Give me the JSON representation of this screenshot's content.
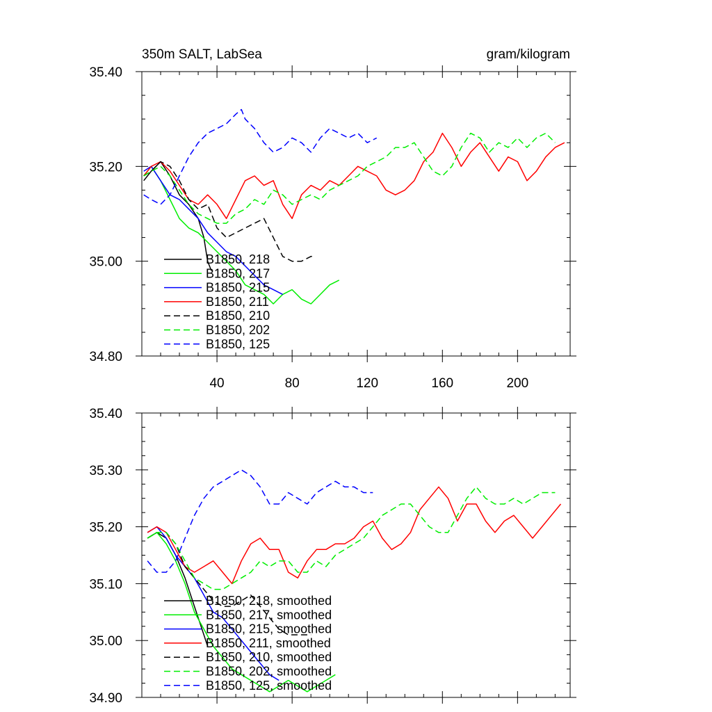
{
  "figure": {
    "title_left": "350m SALT, LabSea",
    "title_right": "gram/kilogram"
  },
  "chart_data": [
    {
      "type": "line",
      "panel": "top",
      "xlim": [
        0,
        228
      ],
      "ylim": [
        34.8,
        35.4
      ],
      "xticks": [
        40,
        80,
        120,
        160,
        200
      ],
      "yticks": [
        34.8,
        35.0,
        35.2,
        35.4
      ],
      "xtick_labels": [
        "40",
        "80",
        "120",
        "160",
        "200"
      ],
      "ytick_labels": [
        "34.80",
        "35.00",
        "35.20",
        "35.40"
      ],
      "legend_position": "bottom-left",
      "series": [
        {
          "name": "B1850, 218",
          "color": "#000000",
          "dash": "solid",
          "x": [
            1,
            5,
            10,
            15,
            20,
            25,
            30,
            33,
            35,
            37
          ],
          "y": [
            35.17,
            35.19,
            35.21,
            35.18,
            35.14,
            35.12,
            35.09,
            35.05,
            35.0,
            34.98
          ]
        },
        {
          "name": "B1850, 217",
          "color": "#00ee00",
          "dash": "solid",
          "x": [
            1,
            5,
            10,
            15,
            20,
            25,
            30,
            35,
            40,
            45,
            50,
            55,
            60,
            65,
            70,
            75,
            80,
            85,
            90,
            95,
            100,
            105
          ],
          "y": [
            35.18,
            35.2,
            35.17,
            35.13,
            35.09,
            35.07,
            35.06,
            35.04,
            35.02,
            35.0,
            34.98,
            34.95,
            34.94,
            34.93,
            34.91,
            34.93,
            34.94,
            34.92,
            34.91,
            34.93,
            34.95,
            34.96
          ]
        },
        {
          "name": "B1850, 215",
          "color": "#0000ff",
          "dash": "solid",
          "x": [
            1,
            5,
            10,
            15,
            20,
            25,
            30,
            35,
            40,
            45,
            50,
            55,
            60,
            65,
            70,
            75
          ],
          "y": [
            35.19,
            35.2,
            35.17,
            35.14,
            35.13,
            35.11,
            35.09,
            35.06,
            35.04,
            35.02,
            35.01,
            34.99,
            34.97,
            34.95,
            34.94,
            34.93
          ]
        },
        {
          "name": "B1850, 211",
          "color": "#ff0000",
          "dash": "solid",
          "x": [
            1,
            5,
            10,
            15,
            20,
            25,
            30,
            35,
            40,
            45,
            50,
            55,
            60,
            65,
            70,
            75,
            80,
            85,
            90,
            95,
            100,
            105,
            110,
            115,
            120,
            125,
            130,
            135,
            140,
            145,
            150,
            155,
            160,
            165,
            170,
            175,
            180,
            185,
            190,
            195,
            200,
            205,
            210,
            215,
            220,
            225
          ],
          "y": [
            35.18,
            35.2,
            35.21,
            35.19,
            35.16,
            35.13,
            35.12,
            35.14,
            35.12,
            35.09,
            35.13,
            35.17,
            35.18,
            35.16,
            35.17,
            35.12,
            35.09,
            35.14,
            35.16,
            35.15,
            35.17,
            35.16,
            35.18,
            35.2,
            35.19,
            35.18,
            35.15,
            35.14,
            35.15,
            35.17,
            35.21,
            35.23,
            35.27,
            35.24,
            35.2,
            35.23,
            35.25,
            35.22,
            35.19,
            35.22,
            35.21,
            35.17,
            35.19,
            35.22,
            35.24,
            35.25
          ]
        },
        {
          "name": "B1850, 210",
          "color": "#000000",
          "dash": "dashed",
          "x": [
            1,
            5,
            10,
            15,
            20,
            25,
            30,
            35,
            40,
            45,
            50,
            55,
            60,
            65,
            70,
            75,
            80,
            85,
            90,
            92
          ],
          "y": [
            35.18,
            35.19,
            35.21,
            35.2,
            35.17,
            35.13,
            35.11,
            35.12,
            35.07,
            35.05,
            35.06,
            35.07,
            35.08,
            35.09,
            35.05,
            35.01,
            35.0,
            35.0,
            35.01,
            35.01
          ]
        },
        {
          "name": "B1850, 202",
          "color": "#00ee00",
          "dash": "dashed",
          "x": [
            1,
            5,
            10,
            15,
            20,
            25,
            30,
            35,
            40,
            45,
            50,
            55,
            60,
            65,
            70,
            75,
            80,
            85,
            90,
            95,
            100,
            105,
            110,
            115,
            120,
            125,
            130,
            135,
            140,
            145,
            150,
            155,
            160,
            165,
            170,
            175,
            180,
            185,
            190,
            195,
            200,
            205,
            210,
            215,
            220
          ],
          "y": [
            35.18,
            35.19,
            35.2,
            35.18,
            35.15,
            35.12,
            35.1,
            35.09,
            35.08,
            35.08,
            35.1,
            35.11,
            35.13,
            35.12,
            35.15,
            35.14,
            35.12,
            35.13,
            35.14,
            35.13,
            35.15,
            35.16,
            35.17,
            35.18,
            35.2,
            35.21,
            35.22,
            35.24,
            35.24,
            35.25,
            35.22,
            35.19,
            35.18,
            35.2,
            35.24,
            35.27,
            35.26,
            35.23,
            35.25,
            35.24,
            35.26,
            35.24,
            35.26,
            35.27,
            35.25
          ]
        },
        {
          "name": "B1850, 125",
          "color": "#0000ff",
          "dash": "dashed",
          "x": [
            1,
            5,
            10,
            15,
            20,
            25,
            30,
            35,
            40,
            45,
            50,
            53,
            55,
            60,
            65,
            70,
            75,
            80,
            85,
            90,
            95,
            100,
            105,
            110,
            115,
            120,
            125
          ],
          "y": [
            35.14,
            35.13,
            35.12,
            35.14,
            35.18,
            35.22,
            35.25,
            35.27,
            35.28,
            35.29,
            35.31,
            35.32,
            35.3,
            35.28,
            35.25,
            35.23,
            35.24,
            35.26,
            35.25,
            35.23,
            35.26,
            35.28,
            35.27,
            35.26,
            35.27,
            35.25,
            35.26
          ]
        }
      ]
    },
    {
      "type": "line",
      "panel": "bottom",
      "xlim": [
        0,
        228
      ],
      "ylim": [
        34.9,
        35.4
      ],
      "yticks": [
        34.9,
        35.0,
        35.1,
        35.2,
        35.3,
        35.4
      ],
      "ytick_labels": [
        "34.90",
        "35.00",
        "35.10",
        "35.20",
        "35.30",
        "35.40"
      ],
      "legend_position": "bottom-left",
      "series": [
        {
          "name": "B1850, 218, smoothed",
          "color": "#000000",
          "dash": "solid",
          "x": [
            3,
            8,
            13,
            18,
            23,
            28,
            31,
            33,
            35
          ],
          "y": [
            35.18,
            35.19,
            35.18,
            35.15,
            35.11,
            35.06,
            35.03,
            35.01,
            34.99
          ]
        },
        {
          "name": "B1850, 217, smoothed",
          "color": "#00ee00",
          "dash": "solid",
          "x": [
            3,
            8,
            13,
            18,
            23,
            28,
            33,
            38,
            43,
            48,
            53,
            58,
            63,
            68,
            73,
            78,
            83,
            88,
            93,
            98,
            103
          ],
          "y": [
            35.18,
            35.19,
            35.17,
            35.14,
            35.1,
            35.05,
            35.02,
            34.99,
            34.97,
            34.95,
            34.94,
            34.93,
            34.92,
            34.91,
            34.92,
            34.93,
            34.92,
            34.91,
            34.92,
            34.93,
            34.94
          ]
        },
        {
          "name": "B1850, 215, smoothed",
          "color": "#0000ff",
          "dash": "solid",
          "x": [
            3,
            8,
            13,
            18,
            23,
            28,
            33,
            38,
            43,
            48,
            53,
            58,
            63,
            68,
            73
          ],
          "y": [
            35.19,
            35.2,
            35.18,
            35.15,
            35.13,
            35.11,
            35.08,
            35.05,
            35.04,
            35.02,
            35.0,
            34.98,
            34.96,
            34.94,
            34.93
          ]
        },
        {
          "name": "B1850, 211, smoothed",
          "color": "#ff0000",
          "dash": "solid",
          "x": [
            3,
            8,
            13,
            18,
            23,
            28,
            33,
            38,
            43,
            48,
            53,
            58,
            63,
            68,
            73,
            78,
            83,
            88,
            93,
            98,
            103,
            108,
            113,
            118,
            123,
            128,
            133,
            138,
            143,
            148,
            153,
            158,
            163,
            168,
            173,
            178,
            183,
            188,
            193,
            198,
            203,
            208,
            213,
            218,
            223
          ],
          "y": [
            35.19,
            35.2,
            35.19,
            35.16,
            35.13,
            35.12,
            35.13,
            35.14,
            35.12,
            35.1,
            35.14,
            35.17,
            35.18,
            35.16,
            35.16,
            35.12,
            35.11,
            35.14,
            35.16,
            35.16,
            35.17,
            35.17,
            35.18,
            35.2,
            35.21,
            35.18,
            35.16,
            35.17,
            35.19,
            35.23,
            35.25,
            35.27,
            35.25,
            35.21,
            35.24,
            35.24,
            35.21,
            35.19,
            35.21,
            35.22,
            35.2,
            35.18,
            35.2,
            35.22,
            35.24
          ]
        },
        {
          "name": "B1850, 210, smoothed",
          "color": "#000000",
          "dash": "dashed",
          "x": [
            3,
            8,
            13,
            18,
            23,
            28,
            33,
            38,
            43,
            48,
            53,
            58,
            63,
            68,
            73,
            78,
            83,
            88,
            90
          ],
          "y": [
            35.18,
            35.19,
            35.19,
            35.17,
            35.13,
            35.11,
            35.09,
            35.07,
            35.06,
            35.06,
            35.07,
            35.08,
            35.06,
            35.04,
            35.02,
            35.01,
            35.01,
            35.01,
            35.01
          ]
        },
        {
          "name": "B1850, 202, smoothed",
          "color": "#00ee00",
          "dash": "dashed",
          "x": [
            3,
            8,
            13,
            18,
            23,
            28,
            33,
            38,
            43,
            48,
            53,
            58,
            63,
            68,
            73,
            78,
            83,
            88,
            93,
            98,
            103,
            108,
            113,
            118,
            123,
            128,
            133,
            138,
            143,
            148,
            153,
            158,
            163,
            168,
            173,
            178,
            183,
            188,
            193,
            198,
            203,
            208,
            213,
            218,
            220
          ],
          "y": [
            35.18,
            35.19,
            35.19,
            35.17,
            35.14,
            35.11,
            35.1,
            35.09,
            35.09,
            35.1,
            35.11,
            35.12,
            35.14,
            35.13,
            35.14,
            35.14,
            35.12,
            35.12,
            35.14,
            35.13,
            35.15,
            35.16,
            35.17,
            35.18,
            35.2,
            35.22,
            35.23,
            35.24,
            35.24,
            35.22,
            35.2,
            35.19,
            35.19,
            35.22,
            35.25,
            35.27,
            35.25,
            35.24,
            35.24,
            35.25,
            35.24,
            35.25,
            35.26,
            35.26,
            35.26
          ]
        },
        {
          "name": "B1850, 125, smoothed",
          "color": "#0000ff",
          "dash": "dashed",
          "x": [
            3,
            8,
            13,
            18,
            23,
            28,
            33,
            38,
            43,
            48,
            53,
            58,
            63,
            68,
            73,
            78,
            83,
            88,
            93,
            98,
            103,
            108,
            113,
            118,
            123
          ],
          "y": [
            35.14,
            35.12,
            35.12,
            35.14,
            35.18,
            35.22,
            35.25,
            35.27,
            35.28,
            35.29,
            35.3,
            35.29,
            35.27,
            35.24,
            35.24,
            35.26,
            35.25,
            35.24,
            35.26,
            35.27,
            35.28,
            35.27,
            35.27,
            35.26,
            35.26
          ]
        }
      ]
    }
  ]
}
